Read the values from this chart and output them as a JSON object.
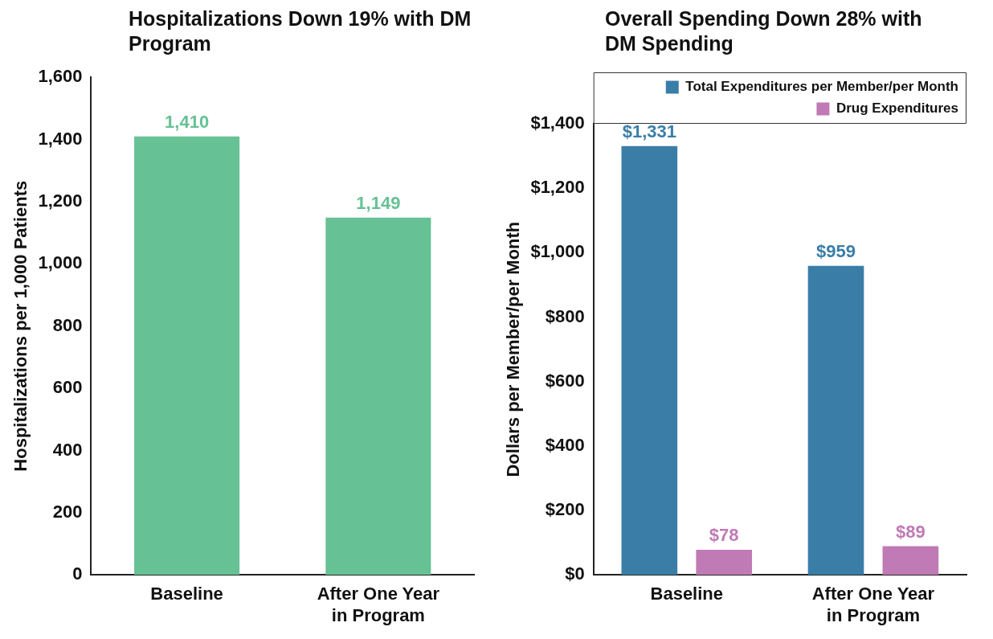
{
  "chart_data": [
    {
      "type": "bar",
      "title": "Hospitalizations Down 19% with DM Program",
      "ylabel": "Hospitalizations per 1,000 Patients",
      "categories": [
        "Baseline",
        "After One Year in Program"
      ],
      "series": [
        {
          "color": "#66c195",
          "values": [
            1410,
            1149
          ],
          "value_labels": [
            "1,410",
            "1,149"
          ]
        }
      ],
      "ylim": [
        0,
        1600
      ],
      "yticks": [
        {
          "value": 0,
          "label": "0"
        },
        {
          "value": 200,
          "label": "200"
        },
        {
          "value": 400,
          "label": "400"
        },
        {
          "value": 600,
          "label": "600"
        },
        {
          "value": 800,
          "label": "800"
        },
        {
          "value": 1000,
          "label": "1,000"
        },
        {
          "value": 1200,
          "label": "1,200"
        },
        {
          "value": 1400,
          "label": "1,400"
        },
        {
          "value": 1600,
          "label": "1,600"
        }
      ],
      "grid": false,
      "legend": false
    },
    {
      "type": "bar",
      "title": "Overall Spending Down 28% with DM Spending",
      "ylabel": "Dollars per Member/per Month",
      "categories": [
        "Baseline",
        "After One Year in Program"
      ],
      "series": [
        {
          "name": "Total Expenditures per Member/per Month",
          "color": "#3a7ea8",
          "values": [
            1331,
            959
          ],
          "value_labels": [
            "$1,331",
            "$959"
          ]
        },
        {
          "name": "Drug Expenditures",
          "color": "#c07ab5",
          "values": [
            78,
            89
          ],
          "value_labels": [
            "$78",
            "$89"
          ]
        }
      ],
      "ylim": [
        0,
        1400
      ],
      "yticks": [
        {
          "value": 0,
          "label": "$0"
        },
        {
          "value": 200,
          "label": "$200"
        },
        {
          "value": 400,
          "label": "$400"
        },
        {
          "value": 600,
          "label": "$600"
        },
        {
          "value": 800,
          "label": "$800"
        },
        {
          "value": 1000,
          "label": "$1,000"
        },
        {
          "value": 1200,
          "label": "$1,200"
        },
        {
          "value": 1400,
          "label": "$1,400"
        }
      ],
      "grid": false,
      "legend": "top right"
    }
  ]
}
